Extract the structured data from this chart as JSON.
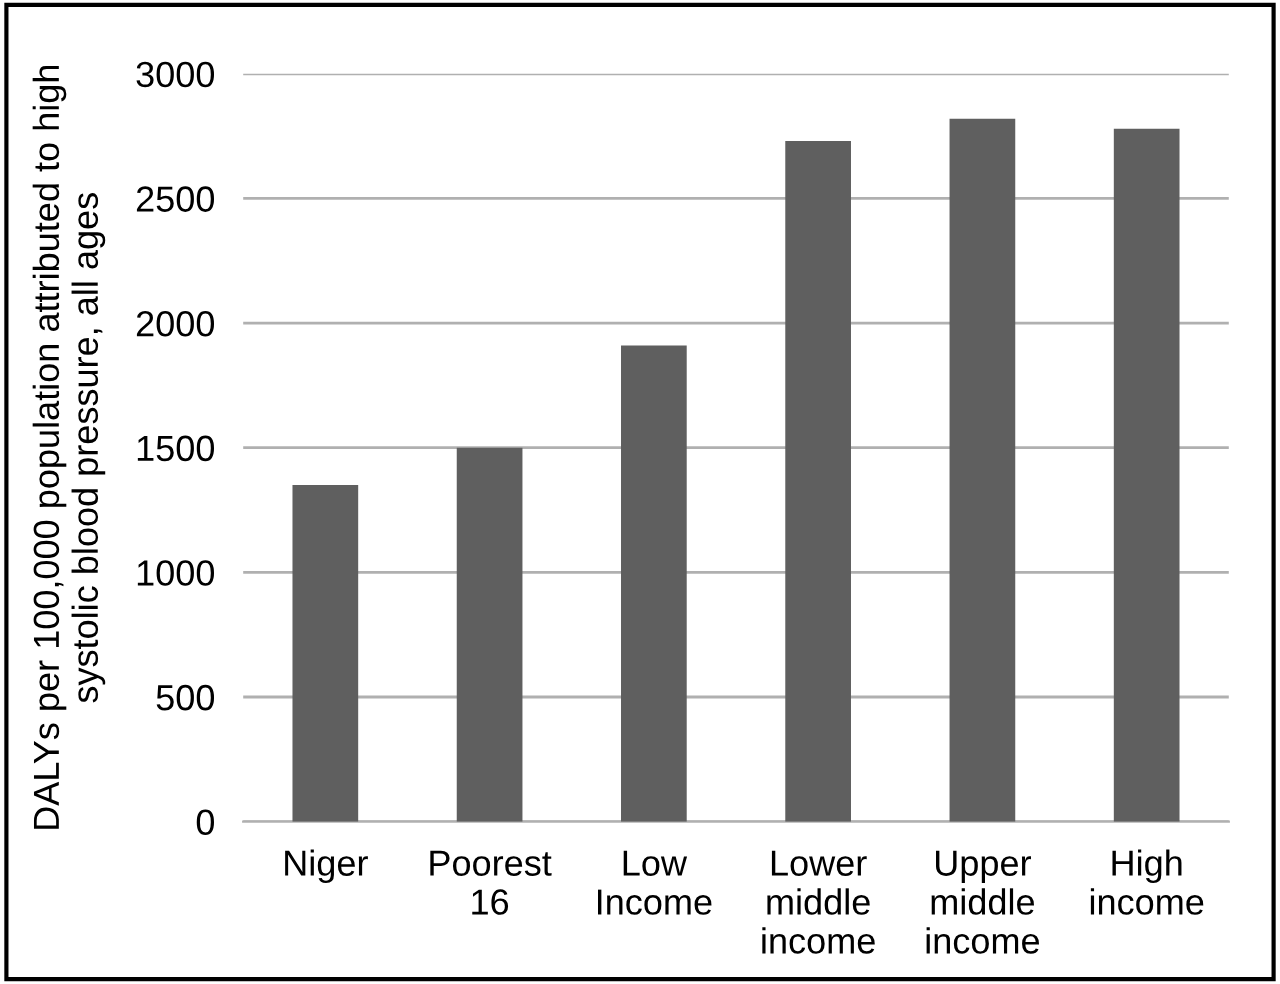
{
  "chart_data": {
    "type": "bar",
    "ylabel": "DALYs per 100,000 population attributed to high systolic blood pressure, all ages",
    "categories": [
      "Niger",
      "Poorest 16",
      "Low Income",
      "Lower middle income",
      "Upper middle income",
      "High income"
    ],
    "values": [
      1350,
      1500,
      1910,
      2730,
      2820,
      2780
    ],
    "color": "#5f5f5f",
    "ylim": [
      0,
      3000
    ],
    "yticks": [
      0,
      500,
      1000,
      1500,
      2000,
      2500,
      3000
    ],
    "grid": "y"
  }
}
